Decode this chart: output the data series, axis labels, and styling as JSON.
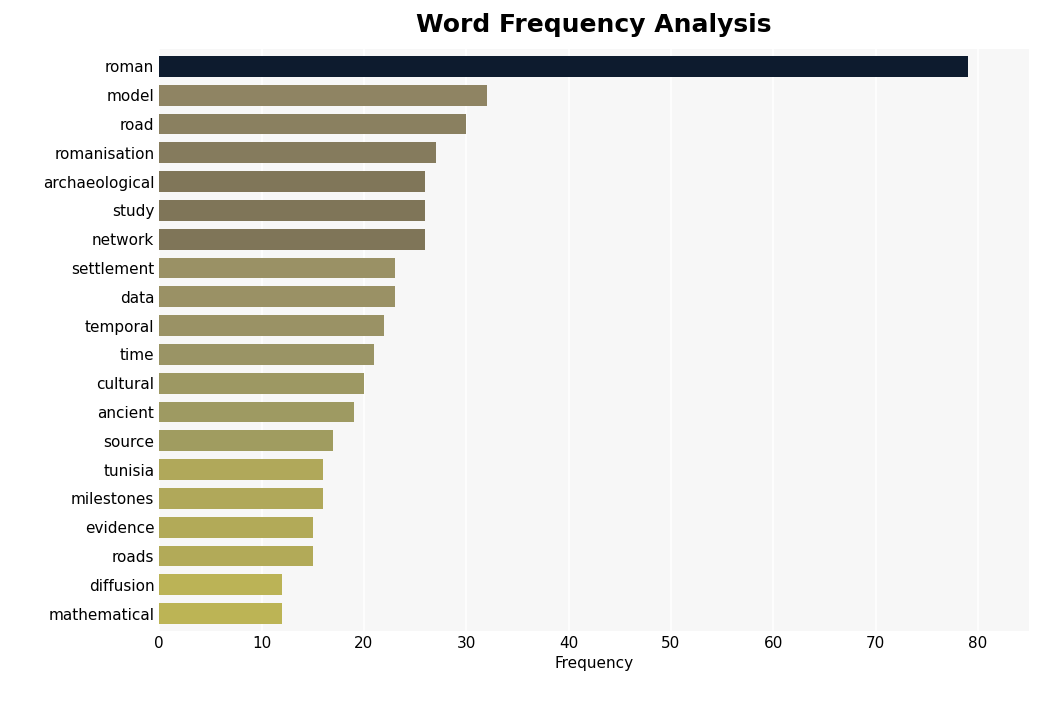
{
  "title": "Word Frequency Analysis",
  "xlabel": "Frequency",
  "categories": [
    "roman",
    "model",
    "road",
    "romanisation",
    "archaeological",
    "study",
    "network",
    "settlement",
    "data",
    "temporal",
    "time",
    "cultural",
    "ancient",
    "source",
    "tunisia",
    "milestones",
    "evidence",
    "roads",
    "diffusion",
    "mathematical"
  ],
  "values": [
    79,
    32,
    30,
    27,
    26,
    26,
    26,
    23,
    23,
    22,
    21,
    20,
    19,
    17,
    16,
    16,
    15,
    15,
    12,
    12
  ],
  "bar_colors": [
    "#0d1b2e",
    "#8f8463",
    "#8a8060",
    "#857b5d",
    "#807659",
    "#7f7558",
    "#7f7558",
    "#9a9165",
    "#9a9165",
    "#9a9265",
    "#9a9465",
    "#9d9863",
    "#9e9a62",
    "#a09c60",
    "#b0a85a",
    "#b0a85a",
    "#b2aa58",
    "#b2aa58",
    "#bbb356",
    "#bcb455"
  ],
  "xlim": [
    0,
    85
  ],
  "xticks": [
    0,
    10,
    20,
    30,
    40,
    50,
    60,
    70,
    80
  ],
  "background_color": "#ffffff",
  "plot_bg_color": "#f7f7f7",
  "title_fontsize": 18,
  "label_fontsize": 11,
  "tick_fontsize": 11,
  "bar_height": 0.72
}
